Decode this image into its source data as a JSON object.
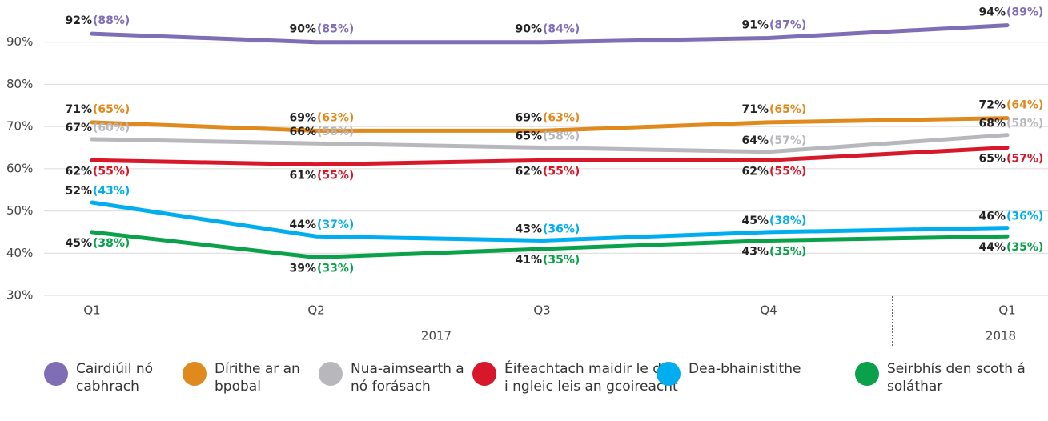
{
  "chart_data": {
    "type": "line",
    "categories": [
      "Q1",
      "Q2",
      "Q3",
      "Q4",
      "Q1"
    ],
    "year_labels": [
      "2017",
      "2018"
    ],
    "ylim": [
      30,
      100
    ],
    "yticks": [
      {
        "value": 30,
        "label": "30%"
      },
      {
        "value": 40,
        "label": "40%"
      },
      {
        "value": 50,
        "label": "50%"
      },
      {
        "value": 60,
        "label": "60%"
      },
      {
        "value": 70,
        "label": "70%"
      },
      {
        "value": 80,
        "label": "80%"
      },
      {
        "value": 90,
        "label": "90%"
      }
    ],
    "grid": true,
    "series": [
      {
        "name": "Cairdiúil nó cabhrach",
        "color": "#7f6db5",
        "values": [
          92,
          90,
          90,
          91,
          94
        ],
        "value_labels": [
          "92%",
          "90%",
          "90%",
          "91%",
          "94%"
        ],
        "comparison_labels": [
          "(88%)",
          "(85%)",
          "(84%)",
          "(87%)",
          "(89%)"
        ]
      },
      {
        "name": "Dírithe ar an bpobal",
        "color": "#e08a1e",
        "values": [
          71,
          69,
          69,
          71,
          72
        ],
        "value_labels": [
          "71%",
          "69%",
          "69%",
          "71%",
          "72%"
        ],
        "comparison_labels": [
          "(65%)",
          "(63%)",
          "(63%)",
          "(65%)",
          "(64%)"
        ]
      },
      {
        "name": "Nua-aimsearth a nó forásach",
        "color": "#b8b8bc",
        "values": [
          67,
          66,
          65,
          64,
          68
        ],
        "value_labels": [
          "67%",
          "66%",
          "65%",
          "64%",
          "68%"
        ],
        "comparison_labels": [
          "(60%)",
          "(58%)",
          "(58%)",
          "(57%)",
          "(58%)"
        ]
      },
      {
        "name": "Éifeachtach maidir le dul i ngleic leis an gcoireacht",
        "color": "#d7182a",
        "values": [
          62,
          61,
          62,
          62,
          65
        ],
        "value_labels": [
          "62%",
          "61%",
          "62%",
          "62%",
          "65%"
        ],
        "comparison_labels": [
          "(55%)",
          "(55%)",
          "(55%)",
          "(55%)",
          "(57%)"
        ]
      },
      {
        "name": "Dea-bhainistithe",
        "color": "#00aeef",
        "values": [
          52,
          44,
          43,
          45,
          46
        ],
        "value_labels": [
          "52%",
          "44%",
          "43%",
          "45%",
          "46%"
        ],
        "comparison_labels": [
          "(43%)",
          "(37%)",
          "(36%)",
          "(38%)",
          "(36%)"
        ]
      },
      {
        "name": "Seirbhís den scoth á soláthar",
        "color": "#0aa14b",
        "values": [
          45,
          39,
          41,
          43,
          44
        ],
        "value_labels": [
          "45%",
          "39%",
          "41%",
          "43%",
          "44%"
        ],
        "comparison_labels": [
          "(38%)",
          "(33%)",
          "(35%)",
          "(35%)",
          "(35%)"
        ]
      }
    ]
  }
}
